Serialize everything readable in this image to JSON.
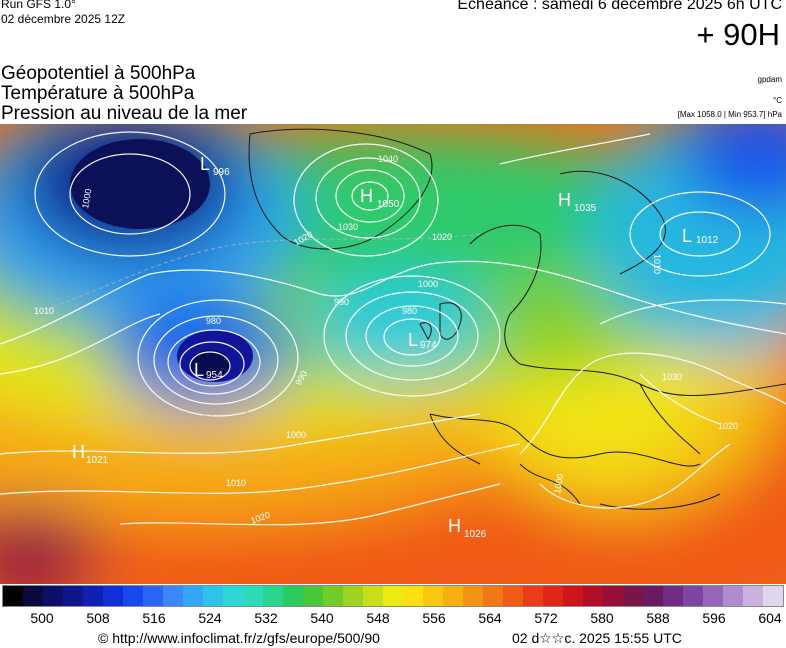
{
  "header": {
    "run_name": "Run GFS 1.0°",
    "run_date": "02 décembre 2025 12Z",
    "valid_time": "Echéance : samedi 6 décembre 2025 6h UTC",
    "lead_time": "+ 90H"
  },
  "titles": {
    "line1": "Géopotentiel à 500hPa",
    "line2": "Température à 500hPa",
    "line3": "Pression au niveau de la mer"
  },
  "units": {
    "geopotential": "gpdam",
    "temperature": "°C",
    "extremes": "[Max 1058.0 | Min 953.7] hPa"
  },
  "pressure_centers": [
    {
      "type": "L",
      "value": "996"
    },
    {
      "type": "H",
      "value": "1050"
    },
    {
      "type": "H",
      "value": "1035"
    },
    {
      "type": "L",
      "value": "1012"
    },
    {
      "type": "L",
      "value": "974"
    },
    {
      "type": "L",
      "value": "954"
    },
    {
      "type": "H",
      "value": "1021"
    },
    {
      "type": "H",
      "value": "1026"
    }
  ],
  "isobar_labels": [
    "1000",
    "1010",
    "1040",
    "1030",
    "1020",
    "1000",
    "990",
    "980",
    "980",
    "990",
    "1000",
    "1010",
    "1020",
    "1020",
    "1030",
    "1020",
    "1010",
    "1000"
  ],
  "colorbar": {
    "colors": [
      "#000000",
      "#0a0a3c",
      "#0d0f66",
      "#10158c",
      "#1020b0",
      "#1030d6",
      "#1848ee",
      "#2b66f7",
      "#3a86fa",
      "#34a6f4",
      "#2fc2ea",
      "#2ed8d8",
      "#2cdcb6",
      "#2bd48e",
      "#2dca5e",
      "#48c838",
      "#70cc28",
      "#9ed420",
      "#c8de18",
      "#eaea14",
      "#fae010",
      "#f8c810",
      "#f6b012",
      "#f49414",
      "#f27816",
      "#ef5a16",
      "#ea3c16",
      "#e02618",
      "#cc161c",
      "#b20e28",
      "#961036",
      "#7a1446",
      "#6a1a60",
      "#6e2c82",
      "#7e46a0",
      "#9666b8",
      "#b08cce",
      "#cab2e0",
      "#e2d6ee"
    ],
    "labels": [
      "500",
      "508",
      "516",
      "524",
      "532",
      "540",
      "548",
      "556",
      "564",
      "572",
      "580",
      "588",
      "596",
      "604"
    ]
  },
  "footer": {
    "credit": "© http://www.infoclimat.fr/z/gfs/europe/500/90",
    "generated": "02 d☆☆c. 2025 15:55 UTC"
  }
}
